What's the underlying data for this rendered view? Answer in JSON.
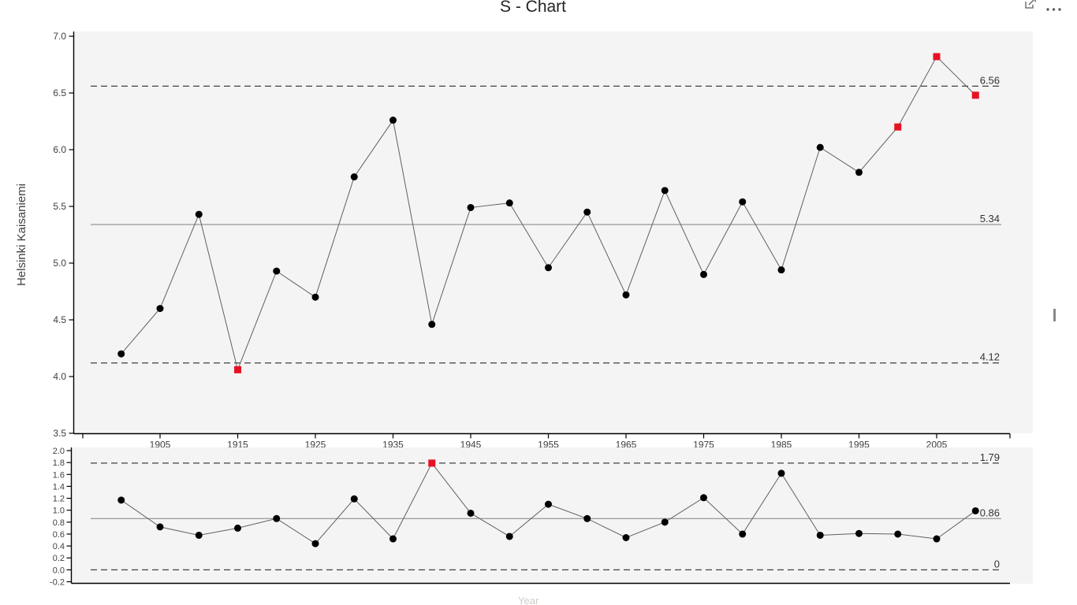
{
  "header": {
    "title": "S - Chart"
  },
  "colors": {
    "out_of_control": "#e81123",
    "marker": "#000000",
    "series_line": "#606060",
    "center_line": "#808080",
    "limit_line": "#404040",
    "plot_background": "#f4f4f4",
    "axis": "#000000",
    "tick_label": "#404040",
    "limit_label": "#333333",
    "icon": "#605e5c"
  },
  "chart_data": [
    {
      "type": "line",
      "name": "mean-chart",
      "ylabel": "Helsinki Kaisaniemi",
      "ylim": [
        3.5,
        7.0
      ],
      "yticks": [
        7.0,
        6.5,
        6.0,
        5.5,
        5.0,
        4.5,
        4.0,
        3.5
      ],
      "xticks": [
        1905,
        1915,
        1925,
        1935,
        1945,
        1955,
        1965,
        1975,
        1985,
        1995,
        2005
      ],
      "x": [
        1900,
        1905,
        1910,
        1915,
        1920,
        1925,
        1930,
        1935,
        1940,
        1945,
        1950,
        1955,
        1960,
        1965,
        1970,
        1975,
        1980,
        1985,
        1990,
        1995,
        2000,
        2005,
        2010
      ],
      "values": [
        4.2,
        4.6,
        5.43,
        4.06,
        4.93,
        4.7,
        5.76,
        6.26,
        4.46,
        5.49,
        5.53,
        4.96,
        5.45,
        4.72,
        5.64,
        4.9,
        5.54,
        4.94,
        6.02,
        5.8,
        6.2,
        6.82,
        6.48
      ],
      "out_of_control_x": [
        1915,
        2000,
        2005,
        2010
      ],
      "ucl": {
        "value": 6.56,
        "label": "6.56"
      },
      "cl": {
        "value": 5.34,
        "label": "5.34"
      },
      "lcl": {
        "value": 4.12,
        "label": "4.12"
      },
      "grid": false,
      "legend": "none"
    },
    {
      "type": "line",
      "name": "stddev-chart",
      "xlabel": "Year",
      "ylim": [
        -0.2,
        2.0
      ],
      "yticks": [
        2.0,
        1.8,
        1.6,
        1.4,
        1.2,
        1.0,
        0.8,
        0.6,
        0.4,
        0.2,
        0.0,
        -0.2
      ],
      "xticks": [],
      "x": [
        1900,
        1905,
        1910,
        1915,
        1920,
        1925,
        1930,
        1935,
        1940,
        1945,
        1950,
        1955,
        1960,
        1965,
        1970,
        1975,
        1980,
        1985,
        1990,
        1995,
        2000,
        2005,
        2010
      ],
      "values": [
        1.17,
        0.72,
        0.58,
        0.7,
        0.86,
        0.44,
        1.19,
        0.52,
        1.79,
        0.95,
        0.56,
        1.1,
        0.86,
        0.54,
        0.8,
        1.21,
        0.6,
        1.62,
        0.58,
        0.61,
        0.6,
        0.52,
        0.99
      ],
      "out_of_control_x": [
        1940
      ],
      "ucl": {
        "value": 1.79,
        "label": "1.79"
      },
      "cl": {
        "value": 0.86,
        "label": "0.86"
      },
      "lcl": {
        "value": 0,
        "label": "0"
      },
      "grid": false,
      "legend": "none"
    }
  ]
}
